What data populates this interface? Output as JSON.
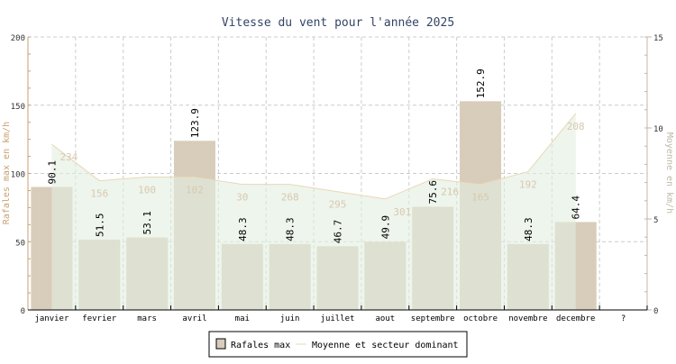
{
  "chart_data": {
    "type": "bar",
    "title": "Vitesse du vent pour l'année 2025",
    "categories": [
      "janvier",
      "fevrier",
      "mars",
      "avril",
      "mai",
      "juin",
      "juillet",
      "aout",
      "septembre",
      "octobre",
      "novembre",
      "decembre",
      "?"
    ],
    "ylabel_left": "Rafales max en km/h",
    "ylabel_right": "Moyenne en km/h",
    "ylim_left": [
      0,
      200
    ],
    "yticks_left": [
      "0",
      "50",
      "100",
      "150",
      "200"
    ],
    "ylim_right": [
      0,
      15
    ],
    "yticks_right": [
      "0",
      "5",
      "10",
      "15"
    ],
    "grid": true,
    "legend_position": "bottom",
    "series": [
      {
        "name": "Rafales max",
        "type": "bar",
        "axis": "left",
        "color": "#d8ccbb",
        "values": [
          90.1,
          51.5,
          53.1,
          123.9,
          48.3,
          48.3,
          46.7,
          49.9,
          75.6,
          152.9,
          48.3,
          64.4,
          null
        ],
        "labels": [
          "90.1",
          "51.5",
          "53.1",
          "123.9",
          "48.3",
          "48.3",
          "46.7",
          "49.9",
          "75.6",
          "152.9",
          "48.3",
          "64.4",
          ""
        ]
      },
      {
        "name": "Moyenne et secteur dominant",
        "type": "area",
        "axis": "right",
        "color": "#e8d8b8",
        "fill": "#e3eee0",
        "values": [
          9.1,
          7.1,
          7.3,
          7.3,
          6.9,
          6.9,
          6.5,
          6.1,
          7.2,
          6.9,
          7.6,
          10.8,
          null
        ],
        "labels": [
          "234",
          "156",
          "100",
          "102",
          "30",
          "268",
          "295",
          "301",
          "216",
          "165",
          "192",
          "208",
          ""
        ]
      }
    ]
  }
}
